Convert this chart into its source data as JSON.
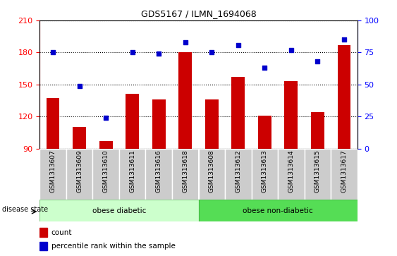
{
  "title": "GDS5167 / ILMN_1694068",
  "samples": [
    "GSM1313607",
    "GSM1313609",
    "GSM1313610",
    "GSM1313611",
    "GSM1313616",
    "GSM1313618",
    "GSM1313608",
    "GSM1313612",
    "GSM1313613",
    "GSM1313614",
    "GSM1313615",
    "GSM1313617"
  ],
  "bar_values": [
    137,
    110,
    97,
    141,
    136,
    180,
    136,
    157,
    121,
    153,
    124,
    187
  ],
  "dot_values": [
    75,
    49,
    24,
    75,
    74,
    83,
    75,
    81,
    63,
    77,
    68,
    85
  ],
  "ylim_left": [
    90,
    210
  ],
  "ylim_right": [
    0,
    100
  ],
  "yticks_left": [
    90,
    120,
    150,
    180,
    210
  ],
  "yticks_right": [
    0,
    25,
    50,
    75,
    100
  ],
  "bar_color": "#cc0000",
  "dot_color": "#0000cc",
  "bg_color_diabetic": "#ccffcc",
  "bg_color_non_diabetic": "#55dd55",
  "tick_bg": "#cccccc",
  "group1_label": "obese diabetic",
  "group1_count": 6,
  "group2_label": "obese non-diabetic",
  "group2_count": 6,
  "disease_state_label": "disease state",
  "legend_count_label": "count",
  "legend_percentile_label": "percentile rank within the sample",
  "bar_bottom": 90
}
